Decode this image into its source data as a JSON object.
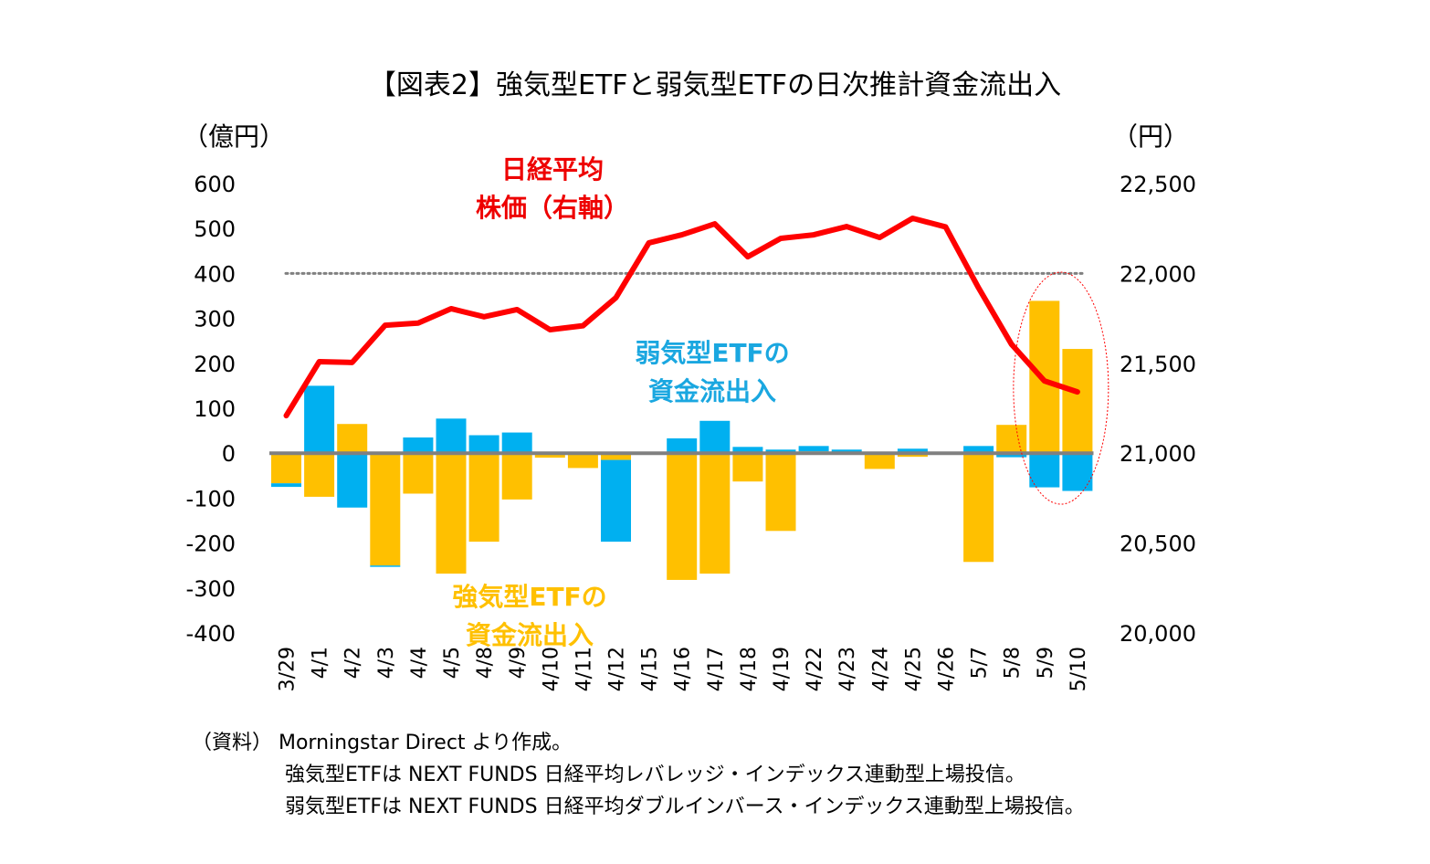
{
  "chart_data": {
    "type": "bar",
    "subtype": "stacked bar + line (dual axis)",
    "title": "【図表2】強気型ETFと弱気型ETFの日次推計資金流出入",
    "ylabel_left": "（億円）",
    "ylabel_right": "（円）",
    "ylim_left": [
      -400,
      600
    ],
    "yticks_left": [
      600,
      500,
      400,
      300,
      200,
      100,
      0,
      -100,
      -200,
      -300,
      -400
    ],
    "ytick_labels_left": [
      "600",
      "500",
      "400",
      "300",
      "200",
      "100",
      "0",
      "-100",
      "-200",
      "-300",
      "-400"
    ],
    "ylim_right": [
      20000,
      22500
    ],
    "yticks_right": [
      22500,
      22000,
      21500,
      21000,
      20500,
      20000
    ],
    "ytick_labels_right": [
      "22,500",
      "22,000",
      "21,500",
      "21,000",
      "20,500",
      "20,000"
    ],
    "reference_line": {
      "axis": "left",
      "value": 400,
      "style": "dotted"
    },
    "categories": [
      "3/29",
      "4/1",
      "4/2",
      "4/3",
      "4/4",
      "4/5",
      "4/8",
      "4/9",
      "4/10",
      "4/11",
      "4/12",
      "4/15",
      "4/16",
      "4/17",
      "4/18",
      "4/19",
      "4/22",
      "4/23",
      "4/24",
      "4/25",
      "4/26",
      "5/7",
      "5/8",
      "5/9",
      "5/10"
    ],
    "series": [
      {
        "name": "強気型ETFの資金流出入",
        "type": "bar",
        "axis": "left",
        "color": "#ffc000",
        "values": [
          -67,
          -97,
          65,
          -250,
          -90,
          -268,
          -197,
          -103,
          -10,
          -33,
          -15,
          0,
          -282,
          -268,
          -63,
          -173,
          4,
          0,
          -35,
          -8,
          0,
          -242,
          63,
          339,
          232
        ]
      },
      {
        "name": "弱気型ETFの資金流出入",
        "type": "bar",
        "axis": "left",
        "color": "#00b0f0",
        "values": [
          -8,
          150,
          -121,
          -3,
          35,
          77,
          40,
          46,
          0,
          3,
          -182,
          0,
          33,
          72,
          14,
          8,
          12,
          8,
          0,
          10,
          0,
          16,
          -9,
          -76,
          -84
        ]
      },
      {
        "name": "日経平均株価（右軸）",
        "type": "line",
        "axis": "right",
        "color": "#ff0000",
        "values": [
          21209,
          21509,
          21505,
          21712,
          21724,
          21804,
          21759,
          21799,
          21687,
          21709,
          21865,
          22170,
          22215,
          22276,
          22093,
          22195,
          22215,
          22261,
          22200,
          22307,
          22259,
          21920,
          21606,
          21402,
          21341
        ]
      }
    ],
    "highlight": {
      "type": "ellipse",
      "categories": [
        "5/9",
        "5/10"
      ],
      "color": "#ff0000",
      "style": "dotted"
    },
    "annotations": [
      {
        "text_lines": [
          "日経平均",
          "株価（右軸）"
        ],
        "color": "#ee0000"
      },
      {
        "text_lines": [
          "弱気型ETFの",
          "資金流出入"
        ],
        "color": "#1aa7e0"
      },
      {
        "text_lines": [
          "強気型ETFの",
          "資金流出入"
        ],
        "color": "#ffc000"
      }
    ],
    "grid": false,
    "legend": "none (inline annotations)"
  },
  "notes": {
    "source": "（資料） Morningstar Direct より作成。",
    "line2": "強気型ETFは NEXT FUNDS  日経平均レバレッジ・インデックス連動型上場投信。",
    "line3": "弱気型ETFは NEXT FUNDS  日経平均ダブルインバース・インデックス連動型上場投信。"
  },
  "colors": {
    "axis": "#808080",
    "reference": "#808080",
    "strong": "#ffc000",
    "weak": "#00b0f0",
    "nikkei": "#ff0000"
  }
}
